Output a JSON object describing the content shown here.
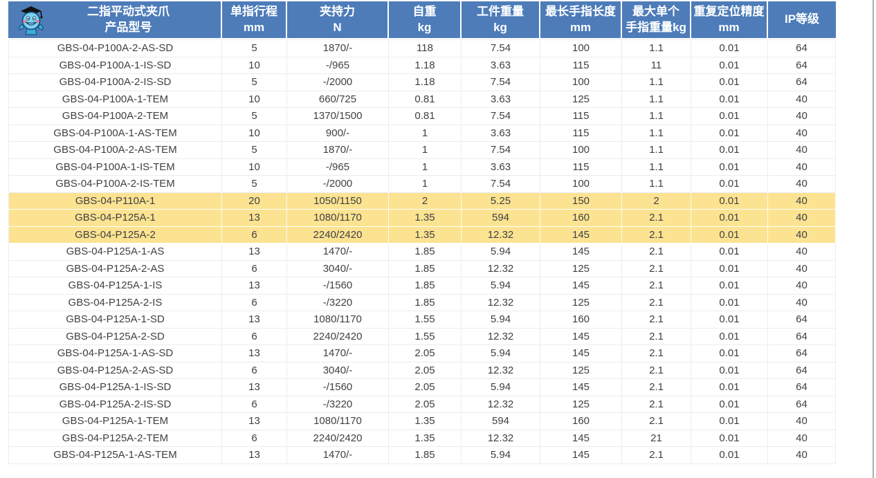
{
  "colors": {
    "header_bg": "#4d7cb9",
    "header_text": "#ffffff",
    "highlight_bg": "#fce392",
    "row_border": "#ececec",
    "body_text": "#404040",
    "window_border": "#ababab"
  },
  "table": {
    "columns": [
      {
        "id": "model",
        "line1": "二指平动式夹爪",
        "line2": "产品型号"
      },
      {
        "id": "stroke",
        "line1": "单指行程",
        "line2": "mm"
      },
      {
        "id": "grip-force",
        "line1": "夹持力",
        "line2": "N"
      },
      {
        "id": "self-weight",
        "line1": "自重",
        "line2": "kg"
      },
      {
        "id": "work-weight",
        "line1": "工件重量",
        "line2": "kg"
      },
      {
        "id": "finger-len",
        "line1": "最长手指长度",
        "line2": "mm"
      },
      {
        "id": "finger-weight",
        "line1": "最大单个",
        "line2": "手指重量kg"
      },
      {
        "id": "repeat-acc",
        "line1": "重复定位精度",
        "line2": "mm"
      },
      {
        "id": "ip-rating",
        "line1": "IP等级",
        "line2": ""
      }
    ],
    "rows": [
      {
        "highlighted": false,
        "cells": [
          "GBS-04-P100A-2-AS-SD",
          "5",
          "1870/-",
          "118",
          "7.54",
          "100",
          "1.1",
          "0.01",
          "64"
        ]
      },
      {
        "highlighted": false,
        "cells": [
          "GBS-04-P100A-1-IS-SD",
          "10",
          "-/965",
          "1.18",
          "3.63",
          "115",
          "11",
          "0.01",
          "64"
        ]
      },
      {
        "highlighted": false,
        "cells": [
          "GBS-04-P100A-2-IS-SD",
          "5",
          "-/2000",
          "1.18",
          "7.54",
          "100",
          "1.1",
          "0.01",
          "64"
        ]
      },
      {
        "highlighted": false,
        "cells": [
          "GBS-04-P100A-1-TEM",
          "10",
          "660/725",
          "0.81",
          "3.63",
          "125",
          "1.1",
          "0.01",
          "40"
        ]
      },
      {
        "highlighted": false,
        "cells": [
          "GBS-04-P100A-2-TEM",
          "5",
          "1370/1500",
          "0.81",
          "7.54",
          "115",
          "1.1",
          "0.01",
          "40"
        ]
      },
      {
        "highlighted": false,
        "cells": [
          "GBS-04-P100A-1-AS-TEM",
          "10",
          "900/-",
          "1",
          "3.63",
          "115",
          "1.1",
          "0.01",
          "40"
        ]
      },
      {
        "highlighted": false,
        "cells": [
          "GBS-04-P100A-2-AS-TEM",
          "5",
          "1870/-",
          "1",
          "7.54",
          "100",
          "1.1",
          "0.01",
          "40"
        ]
      },
      {
        "highlighted": false,
        "cells": [
          "GBS-04-P100A-1-IS-TEM",
          "10",
          "-/965",
          "1",
          "3.63",
          "115",
          "1.1",
          "0.01",
          "40"
        ]
      },
      {
        "highlighted": false,
        "cells": [
          "GBS-04-P100A-2-IS-TEM",
          "5",
          "-/2000",
          "1",
          "7.54",
          "100",
          "1.1",
          "0.01",
          "40"
        ]
      },
      {
        "highlighted": true,
        "cells": [
          "GBS-04-P110A-1",
          "20",
          "1050/1150",
          "2",
          "5.25",
          "150",
          "2",
          "0.01",
          "40"
        ]
      },
      {
        "highlighted": true,
        "cells": [
          "GBS-04-P125A-1",
          "13",
          "1080/1170",
          "1.35",
          "594",
          "160",
          "2.1",
          "0.01",
          "40"
        ]
      },
      {
        "highlighted": true,
        "cells": [
          "GBS-04-P125A-2",
          "6",
          "2240/2420",
          "1.35",
          "12.32",
          "145",
          "2.1",
          "0.01",
          "40"
        ]
      },
      {
        "highlighted": false,
        "cells": [
          "GBS-04-P125A-1-AS",
          "13",
          "1470/-",
          "1.85",
          "5.94",
          "145",
          "2.1",
          "0.01",
          "40"
        ]
      },
      {
        "highlighted": false,
        "cells": [
          "GBS-04-P125A-2-AS",
          "6",
          "3040/-",
          "1.85",
          "12.32",
          "125",
          "2.1",
          "0.01",
          "40"
        ]
      },
      {
        "highlighted": false,
        "cells": [
          "GBS-04-P125A-1-IS",
          "13",
          "-/1560",
          "1.85",
          "5.94",
          "145",
          "2.1",
          "0.01",
          "40"
        ]
      },
      {
        "highlighted": false,
        "cells": [
          "GBS-04-P125A-2-IS",
          "6",
          "-/3220",
          "1.85",
          "12.32",
          "125",
          "2.1",
          "0.01",
          "40"
        ]
      },
      {
        "highlighted": false,
        "cells": [
          "GBS-04-P125A-1-SD",
          "13",
          "1080/1170",
          "1.55",
          "5.94",
          "160",
          "2.1",
          "0.01",
          "64"
        ]
      },
      {
        "highlighted": false,
        "cells": [
          "GBS-04-P125A-2-SD",
          "6",
          "2240/2420",
          "1.55",
          "12.32",
          "145",
          "2.1",
          "0.01",
          "64"
        ]
      },
      {
        "highlighted": false,
        "cells": [
          "GBS-04-P125A-1-AS-SD",
          "13",
          "1470/-",
          "2.05",
          "5.94",
          "145",
          "2.1",
          "0.01",
          "64"
        ]
      },
      {
        "highlighted": false,
        "cells": [
          "GBS-04-P125A-2-AS-SD",
          "6",
          "3040/-",
          "2.05",
          "12.32",
          "125",
          "2.1",
          "0.01",
          "64"
        ]
      },
      {
        "highlighted": false,
        "cells": [
          "GBS-04-P125A-1-IS-SD",
          "13",
          "-/1560",
          "2.05",
          "5.94",
          "145",
          "2.1",
          "0.01",
          "64"
        ]
      },
      {
        "highlighted": false,
        "cells": [
          "GBS-04-P125A-2-IS-SD",
          "6",
          "-/3220",
          "2.05",
          "12.32",
          "125",
          "2.1",
          "0.01",
          "64"
        ]
      },
      {
        "highlighted": false,
        "cells": [
          "GBS-04-P125A-1-TEM",
          "13",
          "1080/1170",
          "1.35",
          "594",
          "160",
          "2.1",
          "0.01",
          "40"
        ]
      },
      {
        "highlighted": false,
        "cells": [
          "GBS-04-P125A-2-TEM",
          "6",
          "2240/2420",
          "1.35",
          "12.32",
          "145",
          "21",
          "0.01",
          "40"
        ]
      },
      {
        "highlighted": false,
        "cells": [
          "GBS-04-P125A-1-AS-TEM",
          "13",
          "1470/-",
          "1.85",
          "5.94",
          "145",
          "2.1",
          "0.01",
          "40"
        ]
      }
    ]
  }
}
